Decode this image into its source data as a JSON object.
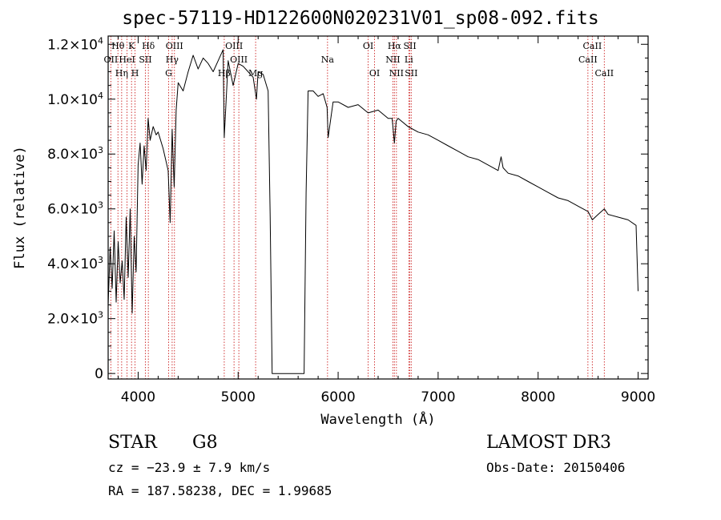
{
  "title": "spec-57119-HD122600N020231V01_sp08-092.fits",
  "chart_data": {
    "type": "line",
    "title": "spec-57119-HD122600N020231V01_sp08-092.fits",
    "xlabel": "Wavelength (Å)",
    "ylabel": "Flux (relative)",
    "xlim": [
      3700,
      9100
    ],
    "ylim": [
      -200,
      12300
    ],
    "x_ticks": [
      4000,
      5000,
      6000,
      7000,
      8000,
      9000
    ],
    "y_ticks": [
      {
        "value": 0,
        "mant": "0",
        "exp": ""
      },
      {
        "value": 2000,
        "mant": "2.0×10",
        "exp": "3"
      },
      {
        "value": 4000,
        "mant": "4.0×10",
        "exp": "3"
      },
      {
        "value": 6000,
        "mant": "6.0×10",
        "exp": "3"
      },
      {
        "value": 8000,
        "mant": "8.0×10",
        "exp": "3"
      },
      {
        "value": 10000,
        "mant": "1.0×10",
        "exp": "4"
      },
      {
        "value": 12000,
        "mant": "1.2×10",
        "exp": "4"
      }
    ],
    "series": [
      {
        "name": "flux",
        "x": [
          3700,
          3720,
          3740,
          3760,
          3780,
          3800,
          3820,
          3840,
          3860,
          3880,
          3900,
          3920,
          3940,
          3960,
          3980,
          4000,
          4020,
          4040,
          4060,
          4080,
          4100,
          4120,
          4150,
          4180,
          4200,
          4250,
          4300,
          4320,
          4340,
          4360,
          4380,
          4400,
          4450,
          4500,
          4550,
          4600,
          4650,
          4700,
          4750,
          4800,
          4850,
          4861,
          4900,
          4950,
          5000,
          5050,
          5100,
          5150,
          5183,
          5200,
          5250,
          5300,
          5320,
          5340,
          5660,
          5680,
          5700,
          5750,
          5800,
          5850,
          5890,
          5900,
          5950,
          6000,
          6100,
          6200,
          6300,
          6400,
          6500,
          6540,
          6563,
          6580,
          6600,
          6700,
          6800,
          6900,
          7000,
          7100,
          7200,
          7300,
          7400,
          7500,
          7600,
          7630,
          7650,
          7700,
          7800,
          7900,
          8000,
          8100,
          8200,
          8300,
          8400,
          8500,
          8542,
          8600,
          8662,
          8700,
          8800,
          8900,
          8980,
          9000
        ],
        "y": [
          2500,
          4600,
          3100,
          5200,
          2600,
          4800,
          3300,
          4100,
          2700,
          5700,
          3500,
          6000,
          2200,
          5000,
          3700,
          7600,
          8400,
          6900,
          8300,
          7400,
          9300,
          8500,
          9000,
          8700,
          8800,
          8200,
          7400,
          5500,
          8900,
          6800,
          9600,
          10600,
          10300,
          11000,
          11600,
          11100,
          11500,
          11300,
          11000,
          11400,
          11800,
          8600,
          11400,
          10500,
          11300,
          11200,
          11000,
          10800,
          10000,
          11000,
          10900,
          10300,
          5800,
          0,
          0,
          6600,
          10300,
          10300,
          10100,
          10200,
          9700,
          8600,
          9900,
          9900,
          9700,
          9800,
          9500,
          9600,
          9300,
          9300,
          8400,
          9200,
          9300,
          9000,
          8800,
          8700,
          8500,
          8300,
          8100,
          7900,
          7800,
          7600,
          7400,
          7900,
          7500,
          7300,
          7200,
          7000,
          6800,
          6600,
          6400,
          6300,
          6100,
          5900,
          5600,
          5800,
          6000,
          5800,
          5700,
          5600,
          5400,
          3000
        ]
      }
    ],
    "lines": [
      {
        "w": 3727,
        "label": "OII",
        "row": 1
      },
      {
        "w": 3798,
        "label": "Hθ",
        "row": 0
      },
      {
        "w": 3835,
        "label": "Hη",
        "row": 2
      },
      {
        "w": 3889,
        "label": "HeI",
        "row": 1
      },
      {
        "w": 3934,
        "label": "K",
        "row": 0
      },
      {
        "w": 3969,
        "label": "H",
        "row": 2
      },
      {
        "w": 4072,
        "label": "SII",
        "row": 1
      },
      {
        "w": 4102,
        "label": "Hδ",
        "row": 0
      },
      {
        "w": 4305,
        "label": "G",
        "row": 2
      },
      {
        "w": 4340,
        "label": "Hγ",
        "row": 1
      },
      {
        "w": 4363,
        "label": "OIII",
        "row": 0
      },
      {
        "w": 4861,
        "label": "Hβ",
        "row": 2
      },
      {
        "w": 4959,
        "label": "OIII",
        "row": 0
      },
      {
        "w": 5007,
        "label": "OIII",
        "row": 1
      },
      {
        "w": 5175,
        "label": "Mg",
        "row": 2
      },
      {
        "w": 5894,
        "label": "Na",
        "row": 1
      },
      {
        "w": 6300,
        "label": "OI",
        "row": 0
      },
      {
        "w": 6364,
        "label": "OI",
        "row": 2
      },
      {
        "w": 6548,
        "label": "NII",
        "row": 1
      },
      {
        "w": 6563,
        "label": "Hα",
        "row": 0
      },
      {
        "w": 6583,
        "label": "NII",
        "row": 2
      },
      {
        "w": 6707,
        "label": "Li",
        "row": 1
      },
      {
        "w": 6717,
        "label": "SII",
        "row": 0
      },
      {
        "w": 6731,
        "label": "SII",
        "row": 2
      },
      {
        "w": 8498,
        "label": "CaII",
        "row": 1
      },
      {
        "w": 8542,
        "label": "CaII",
        "row": 0
      },
      {
        "w": 8662,
        "label": "CaII",
        "row": 2
      }
    ]
  },
  "info": {
    "obj_class": "STAR",
    "subclass": "G8",
    "survey": "LAMOST DR3",
    "redshift": "cz = −23.9 ± 7.9 km/s",
    "obs_date": "Obs-Date: 20150406",
    "coords": "RA = 187.58238, DEC =    1.99685"
  }
}
